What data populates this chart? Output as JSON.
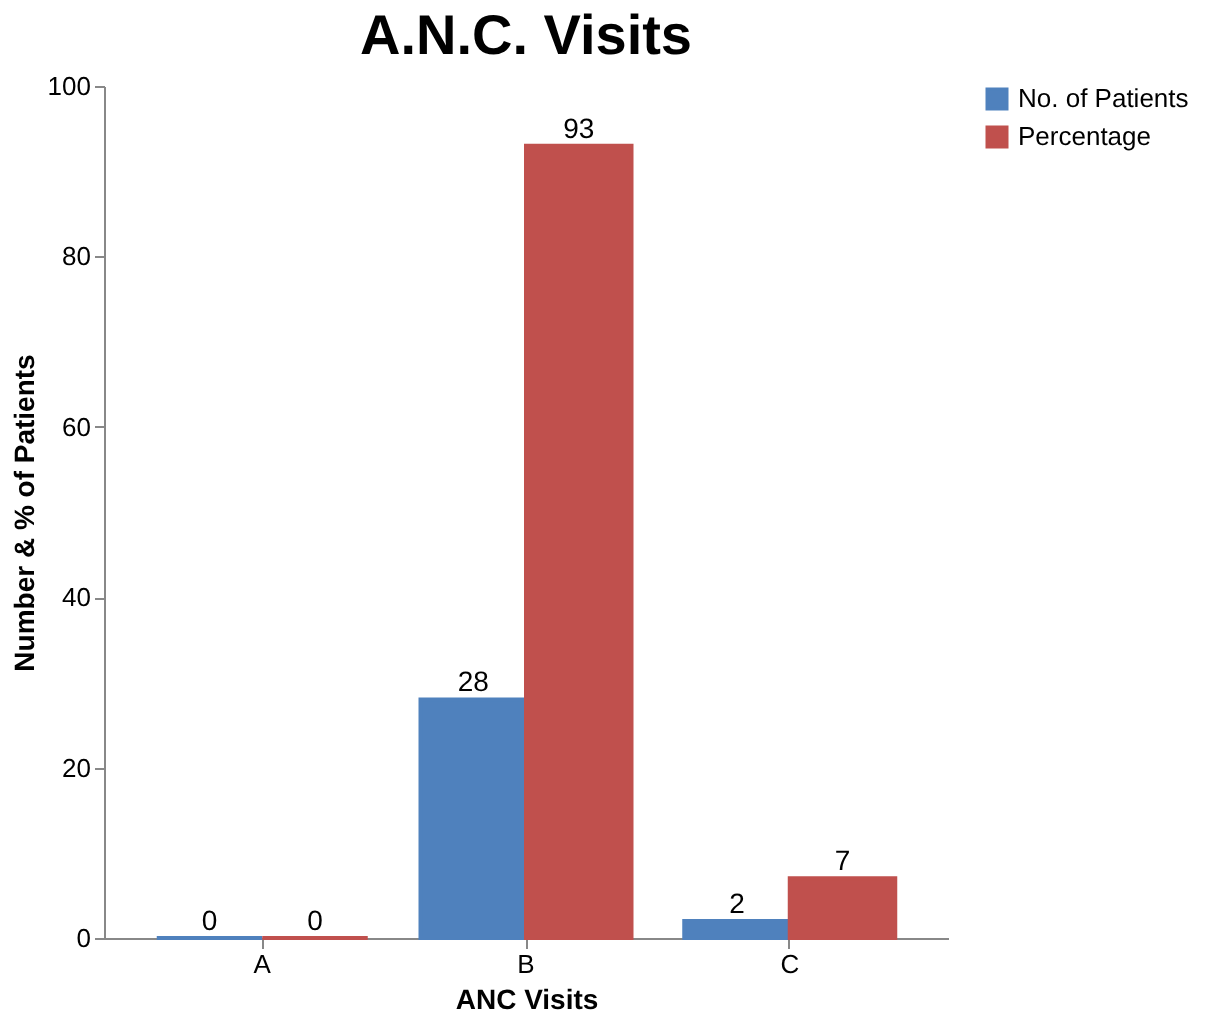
{
  "chart_data": {
    "type": "bar",
    "title": "A.N.C. Visits",
    "xlabel": "ANC Visits",
    "ylabel": "Number & % of Patients",
    "categories": [
      "A",
      "B",
      "C"
    ],
    "series": [
      {
        "name": "No. of Patients",
        "color": "#4f81bd",
        "values": [
          0,
          28,
          2
        ]
      },
      {
        "name": "Percentage",
        "color": "#c0504d",
        "values": [
          0,
          93,
          7
        ]
      }
    ],
    "ylim": [
      0,
      100
    ],
    "yticks": [
      0,
      20,
      40,
      60,
      80,
      100
    ],
    "data_labels": true,
    "legend": "right",
    "grid": false
  }
}
